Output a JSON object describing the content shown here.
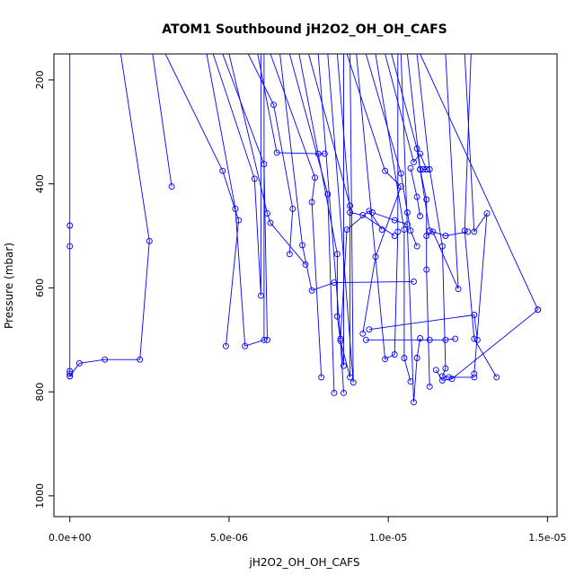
{
  "chart_data": {
    "type": "line",
    "title": "ATOM1 Southbound jH2O2_OH_OH_CAFS",
    "xlabel": "jH2O2_OH_OH_CAFS",
    "ylabel": "Pressure (mbar)",
    "xlim": [
      -5e-07,
      1.53e-05
    ],
    "ylim": [
      1040,
      150
    ],
    "y_reversed": true,
    "x_ticks": [
      {
        "value": 0,
        "label": "0.0e+00"
      },
      {
        "value": 5e-06,
        "label": "5.0e-06"
      },
      {
        "value": 1e-05,
        "label": "1.0e-05"
      },
      {
        "value": 1.5e-05,
        "label": "1.5e-05"
      }
    ],
    "y_ticks": [
      {
        "value": 200,
        "label": "200"
      },
      {
        "value": 400,
        "label": "400"
      },
      {
        "value": 600,
        "label": "600"
      },
      {
        "value": 800,
        "label": "800"
      },
      {
        "value": 1000,
        "label": "1000"
      }
    ],
    "grid": false,
    "legend": "none",
    "color": "#0000ff",
    "series": [
      {
        "points": [
          [
            0,
            150
          ],
          [
            0,
            480
          ],
          [
            0,
            520
          ],
          [
            0,
            760
          ],
          [
            0,
            765
          ],
          [
            0,
            770
          ]
        ]
      },
      {
        "points": [
          [
            0,
            770
          ],
          [
            3e-07,
            745
          ],
          [
            1.1e-06,
            738
          ],
          [
            2.2e-06,
            738
          ],
          [
            2.5e-06,
            510
          ],
          [
            1.6e-06,
            150
          ]
        ]
      },
      {
        "points": [
          [
            2.6e-06,
            150
          ],
          [
            3.2e-06,
            405
          ]
        ]
      },
      {
        "points": [
          [
            3e-06,
            150
          ],
          [
            4.8e-06,
            375
          ],
          [
            5.3e-06,
            470
          ],
          [
            4.9e-06,
            712
          ]
        ]
      },
      {
        "points": [
          [
            4.3e-06,
            150
          ],
          [
            5.2e-06,
            448
          ],
          [
            5.5e-06,
            712
          ],
          [
            6.1e-06,
            700
          ],
          [
            6.1e-06,
            150
          ]
        ]
      },
      {
        "points": [
          [
            4.5e-06,
            150
          ],
          [
            5.8e-06,
            390
          ],
          [
            6e-06,
            615
          ],
          [
            6e-06,
            150
          ]
        ]
      },
      {
        "points": [
          [
            4.8e-06,
            150
          ],
          [
            6.1e-06,
            362
          ],
          [
            6.2e-06,
            700
          ]
        ]
      },
      {
        "points": [
          [
            5e-06,
            150
          ],
          [
            6.2e-06,
            457
          ],
          [
            6.3e-06,
            475
          ],
          [
            7.4e-06,
            555
          ]
        ]
      },
      {
        "points": [
          [
            5.6e-06,
            150
          ],
          [
            6.4e-06,
            248
          ],
          [
            7e-06,
            448
          ],
          [
            6.9e-06,
            535
          ]
        ]
      },
      {
        "points": [
          [
            5.9e-06,
            150
          ],
          [
            6.5e-06,
            340
          ],
          [
            7.8e-06,
            342
          ],
          [
            8e-06,
            342
          ]
        ]
      },
      {
        "points": [
          [
            6.3e-06,
            150
          ],
          [
            7.7e-06,
            388
          ],
          [
            7.6e-06,
            435
          ],
          [
            7.9e-06,
            772
          ]
        ]
      },
      {
        "points": [
          [
            6.6e-06,
            150
          ],
          [
            7.3e-06,
            518
          ],
          [
            7.6e-06,
            605
          ],
          [
            8.3e-06,
            590
          ],
          [
            1.08e-05,
            588
          ]
        ]
      },
      {
        "points": [
          [
            6.9e-06,
            150
          ],
          [
            8.1e-06,
            420
          ],
          [
            8.3e-06,
            802
          ]
        ]
      },
      {
        "points": [
          [
            7.2e-06,
            150
          ],
          [
            8.4e-06,
            535
          ],
          [
            8.4e-06,
            655
          ],
          [
            8.6e-06,
            750
          ],
          [
            8.6e-06,
            150
          ]
        ]
      },
      {
        "points": [
          [
            7.5e-06,
            150
          ],
          [
            8.8e-06,
            442
          ],
          [
            8.8e-06,
            772
          ],
          [
            8.5e-06,
            702
          ],
          [
            8.6e-06,
            802
          ]
        ]
      },
      {
        "points": [
          [
            7.8e-06,
            150
          ],
          [
            8.5e-06,
            698
          ],
          [
            8.7e-06,
            488
          ],
          [
            9.4e-06,
            452
          ],
          [
            9.8e-06,
            488
          ]
        ]
      },
      {
        "points": [
          [
            8.1e-06,
            150
          ],
          [
            8.9e-06,
            782
          ],
          [
            8.8e-06,
            150
          ]
        ]
      },
      {
        "points": [
          [
            8.4e-06,
            150
          ],
          [
            8.8e-06,
            455
          ],
          [
            9.2e-06,
            460
          ],
          [
            1.02e-05,
            500
          ]
        ]
      },
      {
        "points": [
          [
            8.7e-06,
            150
          ],
          [
            9.9e-06,
            375
          ],
          [
            1.04e-05,
            405
          ],
          [
            9.6e-06,
            540
          ],
          [
            9.2e-06,
            688
          ]
        ]
      },
      {
        "points": [
          [
            9e-06,
            150
          ],
          [
            9.9e-06,
            737
          ],
          [
            1.02e-05,
            728
          ],
          [
            1.03e-05,
            492
          ],
          [
            1.03e-05,
            150
          ]
        ]
      },
      {
        "points": [
          [
            9.3e-06,
            150
          ],
          [
            1.04e-05,
            380
          ],
          [
            1.06e-05,
            455
          ],
          [
            1.07e-05,
            490
          ],
          [
            1.09e-05,
            520
          ]
        ]
      },
      {
        "points": [
          [
            9.6e-06,
            150
          ],
          [
            1.05e-05,
            488
          ],
          [
            1.05e-05,
            735
          ],
          [
            1.07e-05,
            780
          ]
        ]
      },
      {
        "points": [
          [
            9.9e-06,
            150
          ],
          [
            1.08e-05,
            358
          ],
          [
            1.1e-05,
            342
          ],
          [
            1.12e-05,
            372
          ],
          [
            1.11e-05,
            372
          ]
        ]
      },
      {
        "points": [
          [
            1.01e-05,
            150
          ],
          [
            1.09e-05,
            332
          ],
          [
            1.1e-05,
            372
          ],
          [
            1.12e-05,
            430
          ],
          [
            1.12e-05,
            565
          ],
          [
            1.13e-05,
            790
          ]
        ]
      },
      {
        "points": [
          [
            1.04e-05,
            150
          ],
          [
            1.08e-05,
            820
          ],
          [
            1.09e-05,
            735
          ],
          [
            1.1e-05,
            697
          ]
        ]
      },
      {
        "points": [
          [
            1.06e-05,
            150
          ],
          [
            1.1e-05,
            372
          ],
          [
            1.13e-05,
            490
          ],
          [
            1.18e-05,
            500
          ],
          [
            1.25e-05,
            492
          ]
        ]
      },
      {
        "points": [
          [
            1.09e-05,
            150
          ],
          [
            1.13e-05,
            372
          ],
          [
            1.17e-05,
            520
          ],
          [
            1.18e-05,
            755
          ],
          [
            1.17e-05,
            770
          ],
          [
            1.19e-05,
            772
          ],
          [
            1.27e-05,
            772
          ]
        ]
      },
      {
        "points": [
          [
            9.3e-06,
            700
          ],
          [
            1.13e-05,
            700
          ],
          [
            1.18e-05,
            700
          ],
          [
            1.21e-05,
            698
          ]
        ]
      },
      {
        "points": [
          [
            9.4e-06,
            680
          ],
          [
            1.27e-05,
            652
          ],
          [
            1.28e-05,
            700
          ]
        ]
      },
      {
        "points": [
          [
            1.24e-05,
            150
          ],
          [
            1.27e-05,
            492
          ],
          [
            1.31e-05,
            457
          ],
          [
            1.27e-05,
            765
          ]
        ]
      },
      {
        "points": [
          [
            1.26e-05,
            150
          ],
          [
            1.24e-05,
            490
          ],
          [
            1.27e-05,
            698
          ],
          [
            1.34e-05,
            772
          ]
        ]
      },
      {
        "points": [
          [
            1.47e-05,
            642
          ],
          [
            1.2e-05,
            775
          ],
          [
            1.17e-05,
            778
          ],
          [
            1.15e-05,
            758
          ]
        ]
      },
      {
        "points": [
          [
            1.1e-05,
            150
          ],
          [
            1.47e-05,
            642
          ]
        ]
      },
      {
        "points": [
          [
            1.12e-05,
            500
          ],
          [
            1.14e-05,
            492
          ],
          [
            1.22e-05,
            602
          ],
          [
            1.18e-05,
            150
          ]
        ]
      },
      {
        "points": [
          [
            1.07e-05,
            370
          ],
          [
            1.09e-05,
            425
          ],
          [
            1.1e-05,
            462
          ]
        ]
      },
      {
        "points": [
          [
            9.5e-06,
            455
          ],
          [
            1.02e-05,
            470
          ],
          [
            1.06e-05,
            478
          ]
        ]
      }
    ]
  }
}
